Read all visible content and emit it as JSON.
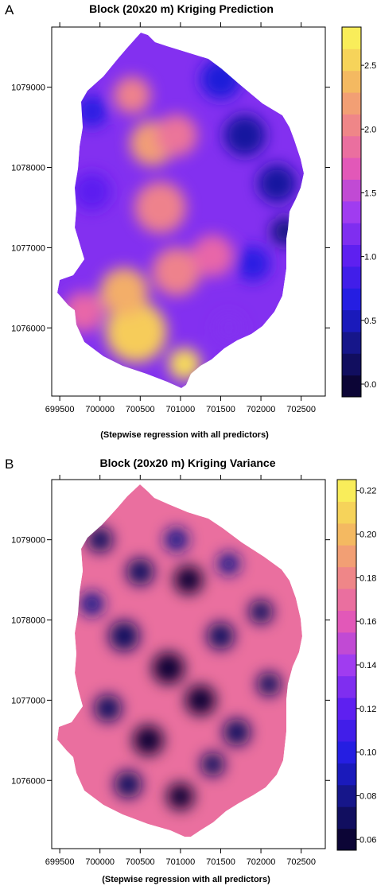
{
  "panels": [
    {
      "label": "A",
      "title": "Block (20x20 m) Kriging Prediction",
      "xlabel": "(Stepwise regression with all predictors)",
      "x_ticks": [
        "699500",
        "700000",
        "700500",
        "701000",
        "701500",
        "702000",
        "702500"
      ],
      "y_ticks": [
        "1076000",
        "1077000",
        "1078000",
        "1079000"
      ],
      "colorbar_ticks": [
        "0.0",
        "0.5",
        "1.0",
        "1.5",
        "2.0",
        "2.5"
      ]
    },
    {
      "label": "B",
      "title": "Block (20x20 m) Kriging Variance",
      "xlabel": "(Stepwise regression with all predictors)",
      "x_ticks": [
        "699500",
        "700000",
        "700500",
        "701000",
        "701500",
        "702000",
        "702500"
      ],
      "y_ticks": [
        "1076000",
        "1077000",
        "1078000",
        "1079000"
      ],
      "colorbar_ticks": [
        "0.06",
        "0.08",
        "0.10",
        "0.12",
        "0.14",
        "0.16",
        "0.18",
        "0.20",
        "0.22"
      ]
    }
  ],
  "chart_data": [
    {
      "type": "heatmap",
      "title": "Block (20x20 m) Kriging Prediction",
      "xlabel": "(Stepwise regression with all predictors)",
      "ylabel": "",
      "xlim": [
        699400,
        702800
      ],
      "ylim": [
        1075150,
        1079750
      ],
      "x_ticks": [
        699500,
        700000,
        700500,
        701000,
        701500,
        702000,
        702500
      ],
      "y_ticks": [
        1076000,
        1077000,
        1078000,
        1079000
      ],
      "value_range": [
        -0.1,
        2.8
      ],
      "colorbar_ticks": [
        0.0,
        0.5,
        1.0,
        1.5,
        2.0,
        2.5
      ],
      "colormap": [
        "#0a0022",
        "#141478",
        "#1e1ee0",
        "#5a1ef0",
        "#a03cf0",
        "#e65ab4",
        "#f08c82",
        "#f5c35a",
        "#fafa5a"
      ],
      "surface_blobs": [
        {
          "x": 700450,
          "y": 1075950,
          "r": 380,
          "v": 2.5
        },
        {
          "x": 700300,
          "y": 1076450,
          "r": 300,
          "v": 2.3
        },
        {
          "x": 700950,
          "y": 1076700,
          "r": 300,
          "v": 2.0
        },
        {
          "x": 700750,
          "y": 1077500,
          "r": 320,
          "v": 2.0
        },
        {
          "x": 700650,
          "y": 1078300,
          "r": 280,
          "v": 2.2
        },
        {
          "x": 700400,
          "y": 1078900,
          "r": 230,
          "v": 2.0
        },
        {
          "x": 700950,
          "y": 1078400,
          "r": 260,
          "v": 1.9
        },
        {
          "x": 701400,
          "y": 1076900,
          "r": 260,
          "v": 1.8
        },
        {
          "x": 699800,
          "y": 1076200,
          "r": 250,
          "v": 1.8
        },
        {
          "x": 701050,
          "y": 1075550,
          "r": 200,
          "v": 2.6
        },
        {
          "x": 701800,
          "y": 1078400,
          "r": 260,
          "v": 0.4
        },
        {
          "x": 702200,
          "y": 1077800,
          "r": 240,
          "v": 0.4
        },
        {
          "x": 701900,
          "y": 1076800,
          "r": 220,
          "v": 0.7
        },
        {
          "x": 699900,
          "y": 1078700,
          "r": 200,
          "v": 0.7
        },
        {
          "x": 701500,
          "y": 1079100,
          "r": 250,
          "v": 0.6
        },
        {
          "x": 699900,
          "y": 1077700,
          "r": 240,
          "v": 1.0
        },
        {
          "x": 701600,
          "y": 1076000,
          "r": 180,
          "v": 1.2
        },
        {
          "x": 702300,
          "y": 1077200,
          "r": 180,
          "v": 0.3
        }
      ]
    },
    {
      "type": "heatmap",
      "title": "Block (20x20 m) Kriging Variance",
      "xlabel": "(Stepwise regression with all predictors)",
      "ylabel": "",
      "xlim": [
        699400,
        702800
      ],
      "ylim": [
        1075150,
        1079750
      ],
      "x_ticks": [
        699500,
        700000,
        700500,
        701000,
        701500,
        702000,
        702500
      ],
      "y_ticks": [
        1076000,
        1077000,
        1078000,
        1079000
      ],
      "value_range": [
        0.055,
        0.225
      ],
      "colorbar_ticks": [
        0.06,
        0.08,
        0.1,
        0.12,
        0.14,
        0.16,
        0.18,
        0.2,
        0.22
      ],
      "colormap": [
        "#0a0022",
        "#141478",
        "#1e1ee0",
        "#5a1ef0",
        "#a03cf0",
        "#e65ab4",
        "#f08c82",
        "#f5c35a",
        "#fafa5a"
      ],
      "surface_blobs": [
        {
          "x": 700000,
          "y": 1079000,
          "r": 160,
          "v": 0.07
        },
        {
          "x": 700500,
          "y": 1078600,
          "r": 170,
          "v": 0.07
        },
        {
          "x": 701100,
          "y": 1078500,
          "r": 180,
          "v": 0.06
        },
        {
          "x": 700300,
          "y": 1077800,
          "r": 190,
          "v": 0.07
        },
        {
          "x": 700850,
          "y": 1077400,
          "r": 200,
          "v": 0.06
        },
        {
          "x": 701500,
          "y": 1077800,
          "r": 170,
          "v": 0.07
        },
        {
          "x": 702000,
          "y": 1078100,
          "r": 150,
          "v": 0.07
        },
        {
          "x": 701250,
          "y": 1077000,
          "r": 190,
          "v": 0.06
        },
        {
          "x": 700100,
          "y": 1076900,
          "r": 170,
          "v": 0.07
        },
        {
          "x": 700600,
          "y": 1076500,
          "r": 190,
          "v": 0.06
        },
        {
          "x": 701700,
          "y": 1076600,
          "r": 170,
          "v": 0.07
        },
        {
          "x": 702100,
          "y": 1077200,
          "r": 150,
          "v": 0.07
        },
        {
          "x": 700350,
          "y": 1075950,
          "r": 170,
          "v": 0.07
        },
        {
          "x": 701000,
          "y": 1075800,
          "r": 170,
          "v": 0.06
        },
        {
          "x": 701400,
          "y": 1076200,
          "r": 150,
          "v": 0.07
        },
        {
          "x": 700950,
          "y": 1079000,
          "r": 150,
          "v": 0.08
        },
        {
          "x": 701600,
          "y": 1078700,
          "r": 140,
          "v": 0.08
        },
        {
          "x": 699900,
          "y": 1078200,
          "r": 150,
          "v": 0.08
        }
      ]
    }
  ]
}
